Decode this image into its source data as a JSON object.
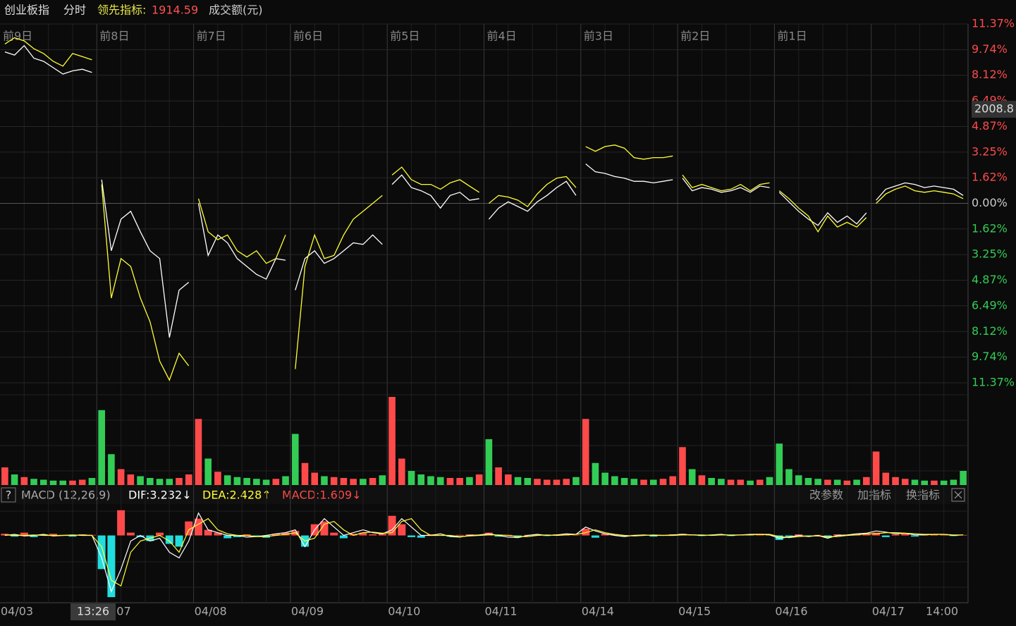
{
  "chart_data": {
    "type": "line",
    "title": "创业板指",
    "mode": "分时",
    "indicator_label": "领先指标:",
    "indicator_value": "1914.59",
    "volume_label": "成交额(元)",
    "day_labels": [
      "前9日",
      "前8日",
      "前7日",
      "前6日",
      "前5日",
      "前4日",
      "前3日",
      "前2日",
      "前1日"
    ],
    "x_labels": [
      "04/03",
      "07",
      "04/08",
      "04/09",
      "04/10",
      "04/11",
      "04/14",
      "04/15",
      "04/16",
      "04/17"
    ],
    "cursor_time": "13:26",
    "time_label": "14:00",
    "cursor_price": "2008.8",
    "ylim": [
      -11.37,
      11.37
    ],
    "yticks": [
      {
        "value": 11.37,
        "label": "11.37%"
      },
      {
        "value": 9.74,
        "label": "9.74%"
      },
      {
        "value": 8.12,
        "label": "8.12%"
      },
      {
        "value": 6.49,
        "label": "6.49%"
      },
      {
        "value": 4.87,
        "label": "4.87%"
      },
      {
        "value": 3.25,
        "label": "3.25%"
      },
      {
        "value": 1.62,
        "label": "1.62%"
      },
      {
        "value": 0,
        "label": "0.00%"
      },
      {
        "value": -1.62,
        "label": "1.62%"
      },
      {
        "value": -3.25,
        "label": "3.25%"
      },
      {
        "value": -4.87,
        "label": "4.87%"
      },
      {
        "value": -6.49,
        "label": "6.49%"
      },
      {
        "value": -8.12,
        "label": "8.12%"
      },
      {
        "value": -9.74,
        "label": "9.74%"
      },
      {
        "value": -11.37,
        "label": "11.37%"
      }
    ],
    "up_color": "#ff4a4a",
    "down_color": "#33cc55",
    "grid": true,
    "series": [
      {
        "color": "#ffffff",
        "values": [
          9.6,
          9.4,
          10.0,
          9.2,
          9.0,
          8.6,
          8.2,
          8.4,
          8.5,
          8.3,
          1.5,
          -3.0,
          -1.0,
          -0.5,
          -1.8,
          -3.0,
          -3.5,
          -8.5,
          -5.5,
          -5.0,
          0,
          -3.3,
          -2.0,
          -2.5,
          -3.5,
          -4.0,
          -4.5,
          -4.8,
          -3.5,
          -3.6,
          -5.5,
          -3.5,
          -3.0,
          -3.8,
          -3.5,
          -3.0,
          -2.5,
          -2.6,
          -2.0,
          -2.6,
          1.2,
          1.8,
          1.0,
          0.8,
          0.5,
          -0.3,
          0.5,
          0.7,
          0.2,
          0.3,
          -1.0,
          -0.3,
          0.1,
          -0.2,
          -0.5,
          0.1,
          0.5,
          1.0,
          1.4,
          0.5,
          2.5,
          2.0,
          1.9,
          1.7,
          1.6,
          1.4,
          1.4,
          1.3,
          1.4,
          1.5,
          1.6,
          0.8,
          1.0,
          0.9,
          0.7,
          0.8,
          1.0,
          0.7,
          1.1,
          1.0,
          0.7,
          0.1,
          -0.5,
          -1.0,
          -1.4,
          -0.6,
          -1.2,
          -0.8,
          -1.3,
          -0.6,
          0.2,
          0.9,
          1.1,
          1.3,
          1.2,
          1.0,
          1.1,
          1.0,
          0.9,
          0.5
        ]
      },
      {
        "color": "#ffff33",
        "values": [
          10.1,
          10.5,
          10.3,
          9.8,
          9.5,
          9.0,
          8.7,
          9.5,
          9.3,
          9.1,
          1.2,
          -6.0,
          -3.5,
          -4.0,
          -6.0,
          -7.5,
          -10.0,
          -11.2,
          -9.5,
          -10.3,
          0.3,
          -1.8,
          -2.3,
          -2.0,
          -3.0,
          -3.4,
          -3.0,
          -3.8,
          -3.5,
          -2.0,
          -10.5,
          -4.0,
          -2.0,
          -3.5,
          -3.3,
          -2.0,
          -1.0,
          -0.5,
          0.0,
          0.5,
          1.8,
          2.3,
          1.5,
          1.2,
          1.2,
          0.9,
          1.3,
          1.5,
          1.1,
          0.7,
          0.0,
          0.5,
          0.4,
          0.2,
          -0.2,
          0.6,
          1.2,
          1.6,
          1.7,
          1.0,
          3.6,
          3.3,
          3.6,
          3.7,
          3.5,
          2.9,
          2.8,
          2.9,
          2.9,
          3.0,
          1.8,
          1.0,
          1.2,
          1.0,
          0.8,
          0.9,
          1.2,
          0.8,
          1.2,
          1.3,
          0.8,
          0.3,
          -0.3,
          -0.8,
          -1.8,
          -0.8,
          -1.5,
          -1.2,
          -1.5,
          -0.9,
          0.0,
          0.6,
          0.9,
          1.1,
          0.8,
          0.7,
          0.8,
          0.7,
          0.6,
          0.3
        ]
      }
    ],
    "volume": {
      "ylim": [
        0,
        100
      ],
      "values": [
        20,
        12,
        9,
        7,
        6,
        5,
        5,
        5,
        6,
        8,
        85,
        35,
        18,
        12,
        10,
        8,
        7,
        7,
        8,
        12,
        75,
        30,
        15,
        11,
        9,
        8,
        7,
        6,
        7,
        10,
        58,
        25,
        14,
        10,
        9,
        8,
        7,
        7,
        8,
        11,
        100,
        30,
        16,
        12,
        10,
        9,
        8,
        8,
        9,
        12,
        52,
        20,
        12,
        9,
        8,
        7,
        6,
        6,
        7,
        9,
        75,
        25,
        14,
        10,
        8,
        7,
        6,
        6,
        7,
        10,
        43,
        18,
        11,
        8,
        7,
        6,
        6,
        5,
        6,
        9,
        47,
        18,
        11,
        8,
        7,
        6,
        6,
        5,
        6,
        9,
        38,
        14,
        9,
        7,
        6,
        5,
        5,
        5,
        6,
        16
      ]
    },
    "macd": {
      "help": "?",
      "label": "MACD (12,26,9)",
      "dif_label": "DIF:3.232↓",
      "dea_label": "DEA:2.428↑",
      "macd_label": "MACD:1.609↓",
      "buttons": [
        "改参数",
        "加指标",
        "换指标"
      ],
      "ylim": [
        -12,
        5.6
      ],
      "up_color": "#ff4a4a",
      "down_color": "#22dddd",
      "dif_color": "#ffffff",
      "dea_color": "#ffff33",
      "hist": [
        0.3,
        -0.2,
        0.5,
        -0.3,
        0.2,
        0.3,
        0.1,
        -0.2,
        0.2,
        0.1,
        -6,
        -11,
        4.5,
        0.5,
        -0.3,
        -1,
        0.5,
        -1.5,
        -2,
        2.5,
        3,
        1,
        0.5,
        -0.5,
        -0.3,
        0.2,
        -0.2,
        -0.4,
        0.3,
        0.5,
        0.8,
        -2,
        2,
        2.5,
        0.5,
        -0.5,
        0.3,
        0.5,
        0.2,
        0.3,
        3.5,
        2,
        -0.3,
        -0.4,
        0.2,
        0.1,
        -0.2,
        0.1,
        0.2,
        0.1,
        0.5,
        -0.2,
        0.1,
        -0.3,
        0.1,
        0.2,
        -0.1,
        0.2,
        0.3,
        0.1,
        1.2,
        -0.4,
        0.3,
        0.2,
        -0.2,
        0.1,
        0.1,
        -0.2,
        0.1,
        0.2,
        0.3,
        0.2,
        -0.1,
        0.1,
        0.2,
        -0.1,
        0.1,
        0.2,
        0.3,
        0.1,
        -0.8,
        -0.3,
        0.2,
        -0.2,
        0.1,
        -0.4,
        0.2,
        0.1,
        0.3,
        0.4,
        0.5,
        -0.3,
        0.2,
        0.3,
        -0.2,
        0.1,
        0.2,
        0.1,
        -0.1,
        0.1
      ],
      "dif": [
        0,
        0.2,
        -0.1,
        0,
        0.2,
        -0.1,
        0,
        0.1,
        0,
        0,
        -4,
        -10,
        -6,
        -1,
        0,
        -1,
        -0.5,
        -3,
        -4,
        -1,
        4,
        1,
        0.5,
        0,
        0,
        -0.3,
        -0.2,
        0,
        0.3,
        0.5,
        1,
        -2,
        1,
        3,
        1.5,
        0,
        0.5,
        1,
        0.5,
        0.3,
        1,
        3,
        1.5,
        0,
        0,
        0.3,
        -0.2,
        -0.3,
        0,
        0.1,
        0.3,
        0,
        -0.3,
        -0.4,
        0,
        0.2,
        0,
        0.1,
        0.3,
        0.2,
        1.5,
        0.8,
        0.3,
        0,
        -0.2,
        0,
        0.1,
        0,
        0,
        0.1,
        0.2,
        0.1,
        0,
        0.1,
        0.2,
        0,
        0.1,
        0.2,
        0.2,
        0.1,
        -0.5,
        -0.3,
        0,
        -0.2,
        0,
        -0.5,
        0,
        0.1,
        0.3,
        0.4,
        0.8,
        0.6,
        0.3,
        0.4,
        0.1,
        0.1,
        0.2,
        0.2,
        0,
        0.1
      ],
      "dea": [
        0.1,
        0,
        0,
        0.1,
        0,
        0,
        0,
        0,
        0.1,
        0,
        -2,
        -8,
        -9,
        -3,
        -1,
        -0.5,
        0,
        -1,
        -3,
        1,
        2,
        3,
        1,
        0.3,
        0,
        0,
        -0.2,
        -0.2,
        0,
        0.2,
        0.5,
        -1,
        -0.5,
        2,
        2.5,
        1,
        0,
        0.5,
        0.6,
        0.4,
        0.5,
        2.5,
        3,
        1,
        0,
        0,
        0,
        -0.2,
        -0.1,
        0,
        0.1,
        0.1,
        0,
        -0.2,
        -0.2,
        0,
        0.1,
        0,
        0.1,
        0.2,
        0.5,
        1,
        0.5,
        0.2,
        0,
        -0.1,
        0,
        0.1,
        0,
        0,
        0.1,
        0.1,
        0.1,
        0,
        0.1,
        0.1,
        0.1,
        0.1,
        0.2,
        0.2,
        -0.2,
        -0.4,
        -0.2,
        -0.1,
        -0.1,
        -0.2,
        -0.2,
        0,
        0.1,
        0.3,
        0.3,
        0.5,
        0.5,
        0.4,
        0.3,
        0.2,
        0.2,
        0.2,
        0.1,
        0.1
      ]
    }
  }
}
